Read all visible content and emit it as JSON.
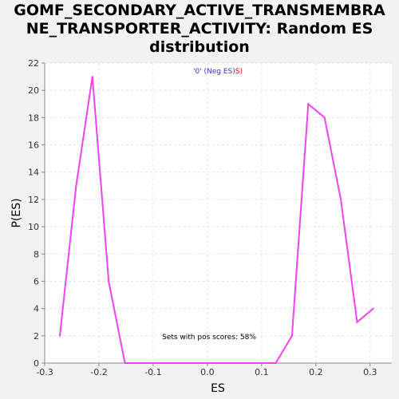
{
  "chart_data": {
    "type": "line",
    "title_lines": [
      "GOMF_SECONDARY_ACTIVE_TRANSMEMBRA",
      "NE_TRANSPORTER_ACTIVITY: Random ES",
      "distribution"
    ],
    "xlabel": "ES",
    "ylabel": "P(ES)",
    "xlim": [
      -0.3,
      0.34
    ],
    "ylim": [
      0,
      22
    ],
    "xticks": [
      -0.3,
      -0.2,
      -0.1,
      0.0,
      0.1,
      0.2,
      0.3
    ],
    "xtick_labels": [
      "-0.3",
      "-0.2",
      "-0.1",
      "0.0",
      "0.1",
      "0.2",
      "0.3"
    ],
    "yticks": [
      0,
      2,
      4,
      6,
      8,
      10,
      12,
      14,
      16,
      18,
      20,
      22
    ],
    "ytick_labels": [
      "0",
      "2",
      "4",
      "6",
      "8",
      "10",
      "12",
      "14",
      "16",
      "18",
      "20",
      "22"
    ],
    "grid": true,
    "legend": {
      "prefix": "'0' (Neg ES)",
      "suffix": "S)",
      "prefix_color": "#3333cc",
      "suffix_color": "#ff0000"
    },
    "annotation": "Sets with pos scores: 58%",
    "line_color": "#ee44ee",
    "series": [
      {
        "x": [
          -0.272,
          -0.242,
          -0.212,
          -0.182,
          -0.152,
          -0.122,
          -0.092,
          -0.062,
          -0.032,
          -0.002,
          0.028,
          0.058,
          0.088,
          0.126,
          0.156,
          0.186,
          0.216,
          0.246,
          0.276,
          0.306
        ],
        "values": [
          2,
          13,
          21,
          6,
          0,
          0,
          0,
          0,
          0,
          0,
          0,
          0,
          0,
          0,
          2,
          19,
          18,
          12,
          3,
          4
        ]
      }
    ]
  }
}
